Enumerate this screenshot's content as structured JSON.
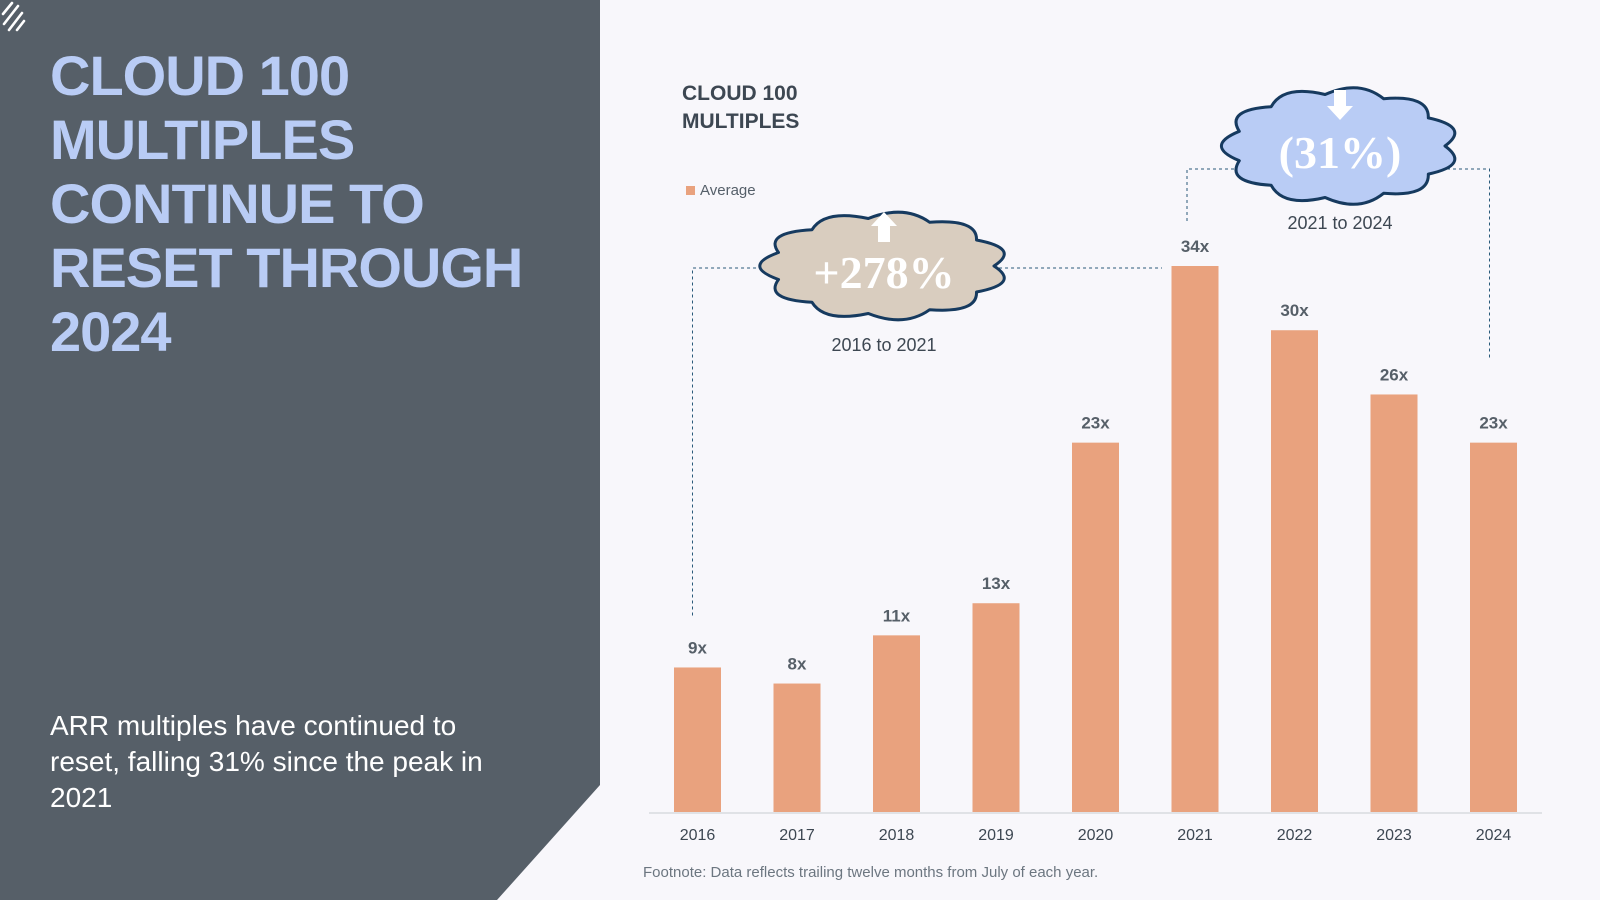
{
  "headline": {
    "lines": [
      "CLOUD 100",
      "MULTIPLES",
      "CONTINUE TO",
      "RESET THROUGH",
      "2024"
    ]
  },
  "subtext": "ARR multiples have continued to reset, falling 31% since the peak in 2021",
  "logo_icon": "bvp-slash-logo-icon",
  "colors": {
    "panel": "#565f68",
    "headline": "#b9ccf5",
    "bar": "#e9a27e",
    "cloud_up": "#d9cdbf",
    "cloud_down": "#b9ccf5",
    "cloud_outline": "#163a5f",
    "background": "#f8f7fb"
  },
  "chart_data": {
    "type": "bar",
    "title_lines": [
      "CLOUD 100",
      "MULTIPLES"
    ],
    "legend": [
      "Average"
    ],
    "categories": [
      "2016",
      "2017",
      "2018",
      "2019",
      "2020",
      "2021",
      "2022",
      "2023",
      "2024"
    ],
    "series": [
      {
        "name": "Average",
        "values": [
          9,
          8,
          11,
          13,
          23,
          34,
          30,
          26,
          23
        ],
        "labels": [
          "9x",
          "8x",
          "11x",
          "13x",
          "23x",
          "34x",
          "30x",
          "26x",
          "23x"
        ]
      }
    ],
    "ylim": [
      0,
      34
    ],
    "xlabel": "",
    "ylabel": "",
    "grid": false,
    "annotations": [
      {
        "icon": "arrow-up-icon",
        "value": "+278%",
        "caption": "2016 to 2021",
        "from": "2016",
        "to": "2021"
      },
      {
        "icon": "arrow-down-icon",
        "value": "(31%)",
        "caption": "2021 to 2024",
        "from": "2021",
        "to": "2024"
      }
    ]
  },
  "footnote": "Footnote: Data reflects trailing twelve months from July of each year."
}
